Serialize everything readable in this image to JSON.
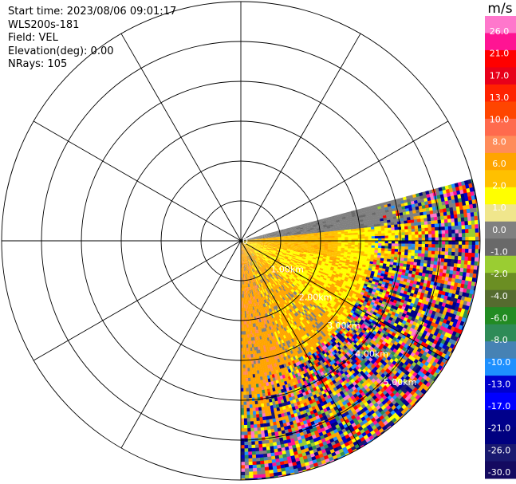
{
  "info": {
    "start_time": "Start time: 2023/08/06 09:01:17",
    "instrument": "WLS200s-181",
    "field": "Field: VEL",
    "elevation": "Elevation(deg): 0.00",
    "nrays": "NRays: 105"
  },
  "chart_data": {
    "type": "heatmap",
    "projection": "polar-ppi",
    "field": "VEL",
    "units": "m/s",
    "range_rings_km": [
      1.0,
      2.0,
      3.0,
      4.0,
      5.0
    ],
    "range_labels": [
      "0",
      "1.00km",
      "2.00km",
      "3.00km",
      "4.00km",
      "5.00km"
    ],
    "max_range_km": 6.0,
    "azimuth_spokes_deg": [
      0,
      30,
      60,
      90,
      120,
      150,
      180,
      210,
      240,
      270,
      300,
      330
    ],
    "scan_sector_deg": [
      75,
      180
    ],
    "colorbar": {
      "label": "m/s",
      "ticks": [
        "26.0",
        "21.0",
        "17.0",
        "13.0",
        "10.0",
        "8.0",
        "6.0",
        "2.0",
        "1.0",
        "0.0",
        "-1.0",
        "-2.0",
        "-4.0",
        "-6.0",
        "-8.0",
        "-10.0",
        "-13.0",
        "-17.0",
        "-21.0",
        "-26.0",
        "-30.0"
      ],
      "colors": [
        "#ff77cc",
        "#ff1493",
        "#ff0000",
        "#e8001a",
        "#ff2200",
        "#ff4500",
        "#ff6a4d",
        "#ff8c5a",
        "#ffa500",
        "#ffc000",
        "#ffff00",
        "#f0e68c",
        "#808080",
        "#696969",
        "#9acd32",
        "#6b8e23",
        "#556b2f",
        "#228b22",
        "#2e8b57",
        "#4682b4",
        "#1e90ff",
        "#0000cd",
        "#0000ff",
        "#00008b",
        "#000080",
        "#191970",
        "#140a60"
      ]
    }
  }
}
